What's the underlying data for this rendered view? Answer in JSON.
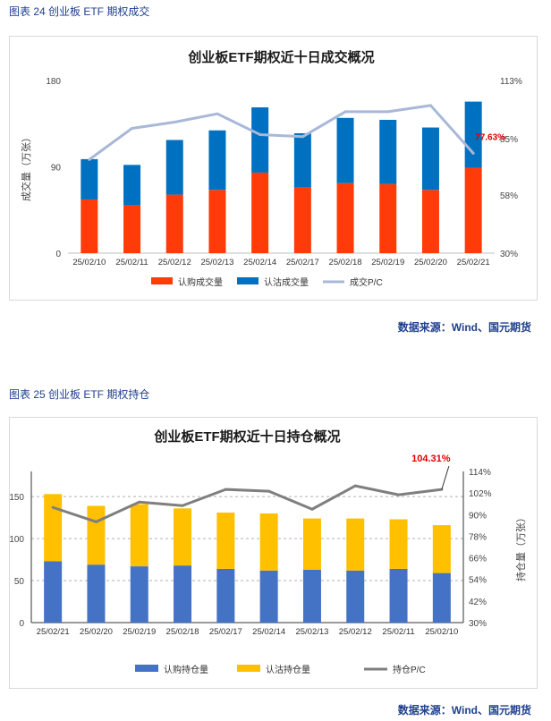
{
  "figures": [
    {
      "caption": "图表 24  创业板 ETF 期权成交",
      "source": "数据来源：Wind、国元期货"
    },
    {
      "caption": "图表 25  创业板 ETF 期权持仓",
      "source": "数据来源：Wind、国元期货"
    }
  ],
  "colors": {
    "red": "#ff3b0a",
    "blue": "#0070c0",
    "lightline": "#a9b8d8",
    "navy": "#4472c4",
    "gold": "#ffc000",
    "gray": "#7f7f7f",
    "label_red": "#e00000"
  },
  "chart_data": [
    {
      "type": "bar",
      "stacked": true,
      "title": "创业板ETF期权近十日成交概况",
      "xlabel": "",
      "ylabel": "成交量（万张）",
      "categories": [
        "25/02/10",
        "25/02/11",
        "25/02/12",
        "25/02/13",
        "25/02/14",
        "25/02/17",
        "25/02/18",
        "25/02/19",
        "25/02/20",
        "25/02/21"
      ],
      "series": [
        {
          "name": "认购成交量",
          "values": [
            56,
            50,
            61,
            66,
            84,
            69,
            73,
            72,
            66,
            89
          ]
        },
        {
          "name": "认沽成交量",
          "values": [
            42,
            42,
            57,
            62,
            68,
            56,
            68,
            67,
            65,
            69
          ]
        },
        {
          "name": "成交P/C",
          "axis": "right",
          "values": [
            0.75,
            0.9,
            0.93,
            0.97,
            0.87,
            0.86,
            0.98,
            0.98,
            1.01,
            0.78
          ]
        }
      ],
      "ylim": [
        0,
        180
      ],
      "yticks": [
        "0",
        "90",
        "180"
      ],
      "y2lim": [
        0.3,
        1.13
      ],
      "y2ticks": [
        "30%",
        "58%",
        "85%",
        "113%"
      ],
      "annotation": "77.63%",
      "legend_position": "bottom"
    },
    {
      "type": "bar",
      "stacked": true,
      "title": "创业板ETF期权近十日持仓概况",
      "xlabel": "",
      "ylabel": "持仓量（万张）",
      "categories": [
        "25/02/21",
        "25/02/20",
        "25/02/19",
        "25/02/18",
        "25/02/17",
        "25/02/14",
        "25/02/13",
        "25/02/12",
        "25/02/11",
        "25/02/10"
      ],
      "series": [
        {
          "name": "认购持仓量",
          "values": [
            73,
            69,
            67,
            68,
            64,
            62,
            63,
            62,
            64,
            59
          ]
        },
        {
          "name": "认沽持仓量",
          "values": [
            80,
            70,
            74,
            68,
            67,
            68,
            61,
            62,
            59,
            57
          ]
        },
        {
          "name": "持仓P/C",
          "axis": "right",
          "values": [
            0.94,
            0.86,
            0.97,
            0.95,
            1.04,
            1.03,
            0.93,
            1.06,
            1.01,
            1.04
          ]
        }
      ],
      "ylim": [
        0,
        180
      ],
      "yticks": [
        "0",
        "50",
        "100",
        "150"
      ],
      "y2lim": [
        0.3,
        1.14
      ],
      "y2ticks": [
        "30%",
        "42%",
        "54%",
        "66%",
        "78%",
        "90%",
        "102%",
        "114%"
      ],
      "annotation": "104.31%",
      "legend_position": "bottom"
    }
  ]
}
